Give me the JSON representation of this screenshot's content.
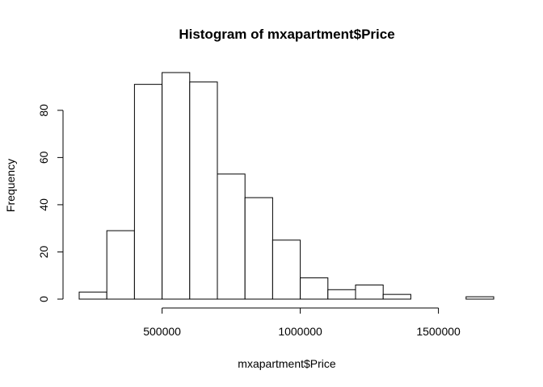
{
  "chart_data": {
    "type": "bar",
    "title": "Histogram of mxapartment$Price",
    "xlabel": "mxapartment$Price",
    "ylabel": "Frequency",
    "bins": [
      [
        200000,
        300000
      ],
      [
        300000,
        400000
      ],
      [
        400000,
        500000
      ],
      [
        500000,
        600000
      ],
      [
        600000,
        700000
      ],
      [
        700000,
        800000
      ],
      [
        800000,
        900000
      ],
      [
        900000,
        1000000
      ],
      [
        1000000,
        1100000
      ],
      [
        1100000,
        1200000
      ],
      [
        1200000,
        1300000
      ],
      [
        1300000,
        1400000
      ],
      [
        1400000,
        1500000
      ],
      [
        1500000,
        1600000
      ],
      [
        1600000,
        1700000
      ]
    ],
    "values": [
      3,
      29,
      91,
      96,
      92,
      53,
      43,
      25,
      9,
      4,
      6,
      2,
      0,
      0,
      1
    ],
    "xlim": [
      200000,
      1700000
    ],
    "ylim": [
      0,
      96
    ],
    "xticks": [
      500000,
      1000000,
      1500000
    ],
    "xtick_labels": [
      "500000",
      "1000000",
      "1500000"
    ],
    "yticks": [
      0,
      20,
      40,
      60,
      80
    ],
    "ytick_labels": [
      "0",
      "20",
      "40",
      "60",
      "80"
    ],
    "grid": false,
    "bar_fill": "#ffffff",
    "bar_stroke": "#000000"
  }
}
